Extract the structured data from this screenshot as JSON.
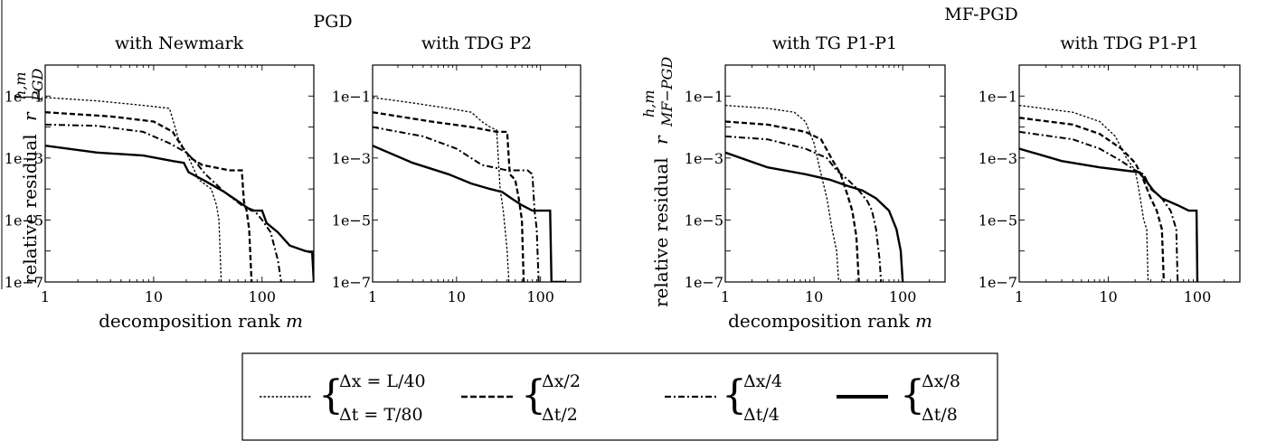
{
  "figure": {
    "groups": [
      {
        "title": "PGD",
        "ylabel_prefix": "relative residual",
        "ylabel_symbol": "r",
        "ylabel_sup": "h,m",
        "ylabel_sub": "PGD"
      },
      {
        "title": "MF-PGD",
        "ylabel_prefix": "relative residual",
        "ylabel_symbol": "r",
        "ylabel_sup": "h,m",
        "ylabel_sub": "MF−PGD"
      }
    ],
    "xlabel_prefix": "decomposition rank",
    "xlabel_symbol": "m",
    "legend": [
      {
        "lines": [
          "Δx = L/40",
          "Δt = T/80"
        ],
        "style": "dotted"
      },
      {
        "lines": [
          "Δx/2",
          "Δt/2"
        ],
        "style": "dashed"
      },
      {
        "lines": [
          "Δx/4",
          "Δt/4"
        ],
        "style": "dashdot"
      },
      {
        "lines": [
          "Δx/8",
          "Δt/8"
        ],
        "style": "solid"
      }
    ]
  },
  "chart_data": [
    {
      "type": "line",
      "title": "with Newmark",
      "xscale": "log",
      "yscale": "log",
      "xlim": [
        1,
        300
      ],
      "ylim": [
        1e-07,
        1
      ],
      "xticks": [
        1,
        10,
        100
      ],
      "xtick_labels": [
        "1",
        "10",
        "100"
      ],
      "yticks": [
        1e-07,
        1e-05,
        0.001,
        0.1
      ],
      "ytick_labels": [
        "1e−7",
        "1e−5",
        "1e−3",
        "1e−1"
      ],
      "series": [
        {
          "style": "dotted",
          "points": [
            [
              1,
              0.09
            ],
            [
              3,
              0.07
            ],
            [
              8,
              0.05
            ],
            [
              14,
              0.04
            ],
            [
              17,
              0.004
            ],
            [
              20,
              0.0015
            ],
            [
              26,
              0.0002
            ],
            [
              34,
              0.0001
            ],
            [
              38,
              3e-05
            ],
            [
              40,
              1e-05
            ],
            [
              42,
              1e-07
            ]
          ]
        },
        {
          "style": "dashed",
          "points": [
            [
              1,
              0.03
            ],
            [
              4,
              0.022
            ],
            [
              10,
              0.015
            ],
            [
              15,
              0.007
            ],
            [
              18,
              0.0025
            ],
            [
              22,
              0.001
            ],
            [
              28,
              0.0006
            ],
            [
              50,
              0.0004
            ],
            [
              65,
              0.0004
            ],
            [
              68,
              4e-05
            ],
            [
              72,
              2e-05
            ],
            [
              76,
              5e-06
            ],
            [
              80,
              1e-07
            ]
          ]
        },
        {
          "style": "dashdot",
          "points": [
            [
              1,
              0.012
            ],
            [
              3,
              0.011
            ],
            [
              8,
              0.007
            ],
            [
              14,
              0.003
            ],
            [
              20,
              0.0015
            ],
            [
              24,
              0.0008
            ],
            [
              30,
              0.0003
            ],
            [
              45,
              8e-05
            ],
            [
              65,
              3e-05
            ],
            [
              85,
              2e-05
            ],
            [
              100,
              1e-05
            ],
            [
              120,
              4e-06
            ],
            [
              140,
              5e-07
            ],
            [
              150,
              1e-07
            ]
          ]
        },
        {
          "style": "solid",
          "points": [
            [
              1,
              0.0025
            ],
            [
              3,
              0.0015
            ],
            [
              8,
              0.0012
            ],
            [
              15,
              0.0008
            ],
            [
              19,
              0.0007
            ],
            [
              21,
              0.00035
            ],
            [
              30,
              0.00018
            ],
            [
              45,
              8e-05
            ],
            [
              60,
              4e-05
            ],
            [
              80,
              2e-05
            ],
            [
              100,
              2e-05
            ],
            [
              110,
              8e-06
            ],
            [
              140,
              4e-06
            ],
            [
              180,
              1.5e-06
            ],
            [
              250,
              1e-06
            ],
            [
              290,
              9e-07
            ],
            [
              300,
              1e-07
            ]
          ]
        }
      ]
    },
    {
      "type": "line",
      "title": "with TDG P2",
      "xscale": "log",
      "yscale": "log",
      "xlim": [
        1,
        300
      ],
      "ylim": [
        1e-07,
        1
      ],
      "xticks": [
        1,
        10,
        100
      ],
      "xtick_labels": [
        "1",
        "10",
        "100"
      ],
      "yticks": [
        1e-07,
        1e-05,
        0.001,
        0.1
      ],
      "ytick_labels": [
        "1e−7",
        "1e−5",
        "1e−3",
        "1e−1"
      ],
      "series": [
        {
          "style": "dotted",
          "points": [
            [
              1,
              0.09
            ],
            [
              3,
              0.06
            ],
            [
              8,
              0.04
            ],
            [
              15,
              0.03
            ],
            [
              20,
              0.015
            ],
            [
              25,
              0.01
            ],
            [
              30,
              0.008
            ],
            [
              33,
              0.0001
            ],
            [
              36,
              2e-05
            ],
            [
              40,
              1e-06
            ],
            [
              42,
              1e-07
            ]
          ]
        },
        {
          "style": "dashed",
          "points": [
            [
              1,
              0.03
            ],
            [
              5,
              0.015
            ],
            [
              15,
              0.01
            ],
            [
              30,
              0.007
            ],
            [
              40,
              0.007
            ],
            [
              43,
              0.0003
            ],
            [
              50,
              0.0002
            ],
            [
              55,
              5e-05
            ],
            [
              60,
              1e-05
            ],
            [
              63,
              1e-07
            ]
          ]
        },
        {
          "style": "dashdot",
          "points": [
            [
              1,
              0.01
            ],
            [
              4,
              0.005
            ],
            [
              10,
              0.002
            ],
            [
              20,
              0.0006
            ],
            [
              40,
              0.0004
            ],
            [
              70,
              0.0004
            ],
            [
              80,
              0.0003
            ],
            [
              85,
              2e-05
            ],
            [
              90,
              5e-06
            ],
            [
              95,
              1e-07
            ]
          ]
        },
        {
          "style": "solid",
          "points": [
            [
              1,
              0.0025
            ],
            [
              3,
              0.0007
            ],
            [
              8,
              0.0003
            ],
            [
              15,
              0.00015
            ],
            [
              25,
              0.0001
            ],
            [
              35,
              8e-05
            ],
            [
              45,
              5e-05
            ],
            [
              60,
              3e-05
            ],
            [
              80,
              2e-05
            ],
            [
              100,
              2e-05
            ],
            [
              120,
              2e-05
            ],
            [
              130,
              2e-05
            ],
            [
              135,
              1e-07
            ],
            [
              200,
              1e-07
            ]
          ]
        }
      ]
    },
    {
      "type": "line",
      "title": "with TG P1-P1",
      "xscale": "log",
      "yscale": "log",
      "xlim": [
        1,
        300
      ],
      "ylim": [
        1e-07,
        1
      ],
      "xticks": [
        1,
        10,
        100
      ],
      "xtick_labels": [
        "1",
        "10",
        "100"
      ],
      "yticks": [
        1e-07,
        1e-05,
        0.001,
        0.1
      ],
      "ytick_labels": [
        "1e−7",
        "1e−5",
        "1e−3",
        "1e−1"
      ],
      "series": [
        {
          "style": "dotted",
          "points": [
            [
              1,
              0.05
            ],
            [
              3,
              0.04
            ],
            [
              6,
              0.03
            ],
            [
              8,
              0.015
            ],
            [
              10,
              0.003
            ],
            [
              12,
              0.0003
            ],
            [
              14,
              5e-05
            ],
            [
              16,
              5e-06
            ],
            [
              18,
              1e-06
            ],
            [
              19,
              1e-07
            ]
          ]
        },
        {
          "style": "dashed",
          "points": [
            [
              1,
              0.015
            ],
            [
              3,
              0.012
            ],
            [
              8,
              0.007
            ],
            [
              12,
              0.004
            ],
            [
              16,
              0.0009
            ],
            [
              20,
              0.0003
            ],
            [
              24,
              6e-05
            ],
            [
              27,
              2e-05
            ],
            [
              30,
              3e-06
            ],
            [
              32,
              1e-07
            ]
          ]
        },
        {
          "style": "dashdot",
          "points": [
            [
              1,
              0.005
            ],
            [
              3,
              0.004
            ],
            [
              8,
              0.002
            ],
            [
              14,
              0.001
            ],
            [
              18,
              0.0004
            ],
            [
              24,
              0.0002
            ],
            [
              32,
              9e-05
            ],
            [
              40,
              4e-05
            ],
            [
              45,
              2e-05
            ],
            [
              50,
              5e-06
            ],
            [
              55,
              5e-07
            ],
            [
              57,
              1e-07
            ]
          ]
        },
        {
          "style": "solid",
          "points": [
            [
              1,
              0.0015
            ],
            [
              3,
              0.0005
            ],
            [
              8,
              0.0003
            ],
            [
              15,
              0.0002
            ],
            [
              25,
              0.00012
            ],
            [
              35,
              9e-05
            ],
            [
              50,
              5e-05
            ],
            [
              70,
              2e-05
            ],
            [
              85,
              5e-06
            ],
            [
              95,
              1e-06
            ],
            [
              100,
              1e-07
            ]
          ]
        }
      ]
    },
    {
      "type": "line",
      "title": "with TDG P1-P1",
      "xscale": "log",
      "yscale": "log",
      "xlim": [
        1,
        300
      ],
      "ylim": [
        1e-07,
        1
      ],
      "xticks": [
        1,
        10,
        100
      ],
      "xtick_labels": [
        "1",
        "10",
        "100"
      ],
      "yticks": [
        1e-07,
        1e-05,
        0.001,
        0.1
      ],
      "ytick_labels": [
        "1e−7",
        "1e−5",
        "1e−3",
        "1e−1"
      ],
      "series": [
        {
          "style": "dotted",
          "points": [
            [
              1,
              0.05
            ],
            [
              4,
              0.03
            ],
            [
              8,
              0.015
            ],
            [
              12,
              0.005
            ],
            [
              16,
              0.001
            ],
            [
              20,
              0.0004
            ],
            [
              22,
              0.0001
            ],
            [
              25,
              1e-05
            ],
            [
              27,
              5e-06
            ],
            [
              28,
              1e-07
            ]
          ]
        },
        {
          "style": "dashed",
          "points": [
            [
              1,
              0.02
            ],
            [
              4,
              0.012
            ],
            [
              8,
              0.006
            ],
            [
              14,
              0.002
            ],
            [
              20,
              0.0007
            ],
            [
              24,
              0.00025
            ],
            [
              30,
              5e-05
            ],
            [
              35,
              2e-05
            ],
            [
              40,
              5e-06
            ],
            [
              42,
              1e-07
            ]
          ]
        },
        {
          "style": "dashdot",
          "points": [
            [
              1,
              0.007
            ],
            [
              4,
              0.004
            ],
            [
              8,
              0.002
            ],
            [
              14,
              0.0008
            ],
            [
              20,
              0.0004
            ],
            [
              25,
              0.0003
            ],
            [
              30,
              0.0001
            ],
            [
              40,
              5e-05
            ],
            [
              50,
              2e-05
            ],
            [
              58,
              5e-06
            ],
            [
              60,
              1e-07
            ]
          ]
        },
        {
          "style": "solid",
          "points": [
            [
              1,
              0.002
            ],
            [
              3,
              0.0008
            ],
            [
              8,
              0.0005
            ],
            [
              15,
              0.0004
            ],
            [
              22,
              0.00035
            ],
            [
              26,
              0.0002
            ],
            [
              32,
              9e-05
            ],
            [
              40,
              5e-05
            ],
            [
              60,
              3e-05
            ],
            [
              80,
              2e-05
            ],
            [
              98,
              2e-05
            ],
            [
              100,
              1e-07
            ]
          ]
        }
      ]
    }
  ]
}
